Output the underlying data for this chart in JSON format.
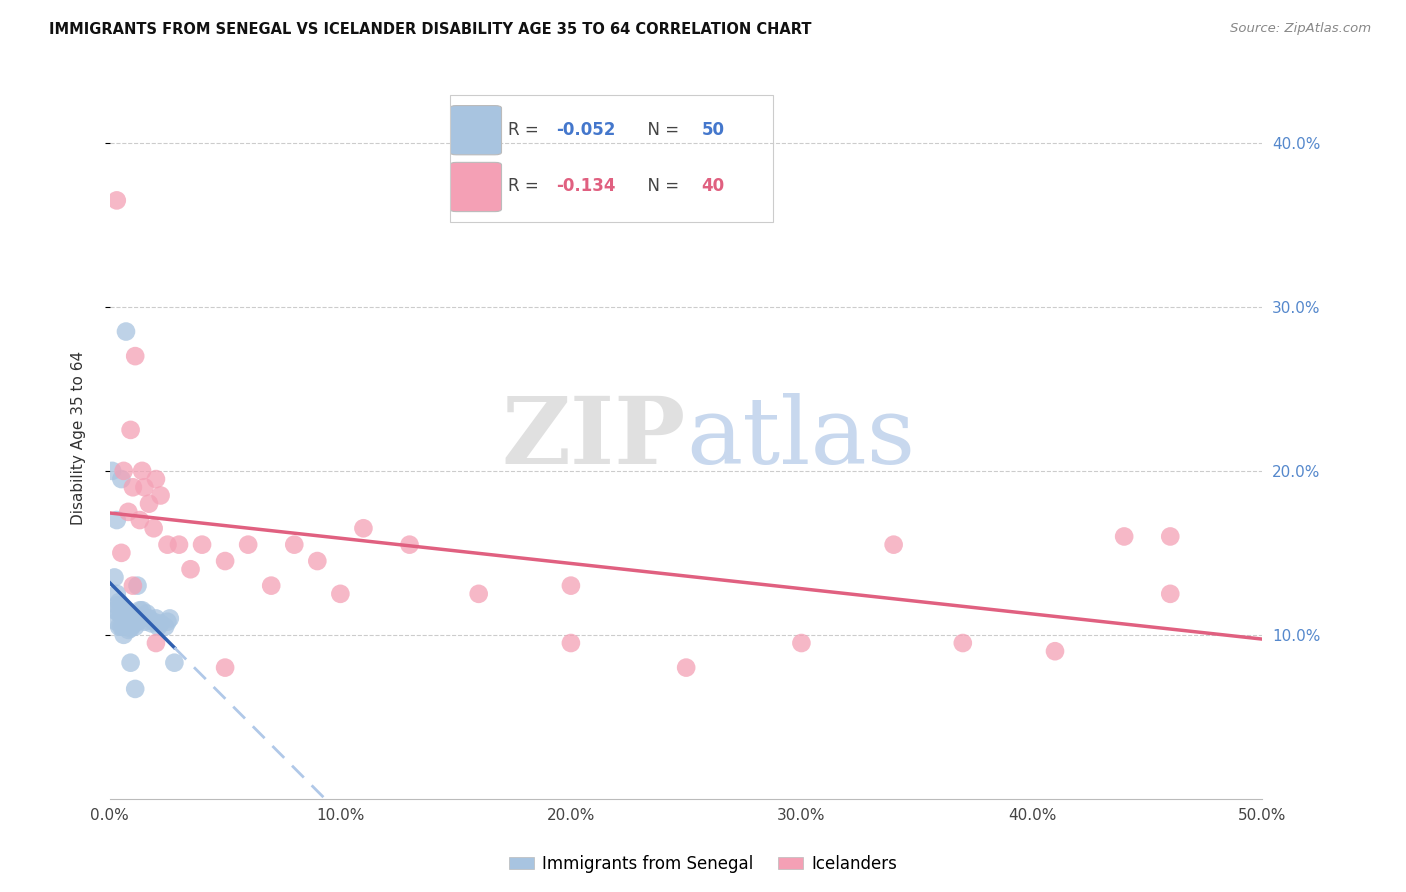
{
  "title": "IMMIGRANTS FROM SENEGAL VS ICELANDER DISABILITY AGE 35 TO 64 CORRELATION CHART",
  "source": "Source: ZipAtlas.com",
  "ylabel": "Disability Age 35 to 64",
  "xlim": [
    0.0,
    0.5
  ],
  "ylim": [
    0.0,
    0.44
  ],
  "xticks": [
    0.0,
    0.1,
    0.2,
    0.3,
    0.4,
    0.5
  ],
  "yticks": [
    0.1,
    0.2,
    0.3,
    0.4
  ],
  "ytick_labels_right": [
    "10.0%",
    "20.0%",
    "30.0%",
    "40.0%"
  ],
  "xtick_labels": [
    "0.0%",
    "10.0%",
    "20.0%",
    "30.0%",
    "40.0%",
    "50.0%"
  ],
  "legend_r_blue": "-0.052",
  "legend_n_blue": "50",
  "legend_r_pink": "-0.134",
  "legend_n_pink": "40",
  "blue_color": "#a8c4e0",
  "pink_color": "#f4a0b5",
  "line_blue_solid": "#3060b0",
  "line_pink_solid": "#e06080",
  "line_blue_dashed": "#b0c8e8",
  "blue_x": [
    0.001,
    0.002,
    0.002,
    0.003,
    0.003,
    0.003,
    0.004,
    0.004,
    0.004,
    0.005,
    0.005,
    0.005,
    0.006,
    0.006,
    0.006,
    0.006,
    0.007,
    0.007,
    0.007,
    0.008,
    0.008,
    0.008,
    0.009,
    0.009,
    0.009,
    0.01,
    0.01,
    0.011,
    0.011,
    0.012,
    0.012,
    0.013,
    0.014,
    0.015,
    0.016,
    0.017,
    0.018,
    0.019,
    0.02,
    0.021,
    0.022,
    0.024,
    0.025,
    0.026,
    0.028,
    0.003,
    0.005,
    0.007,
    0.009,
    0.011
  ],
  "blue_y": [
    0.2,
    0.135,
    0.115,
    0.125,
    0.118,
    0.108,
    0.12,
    0.113,
    0.105,
    0.118,
    0.112,
    0.105,
    0.115,
    0.11,
    0.105,
    0.1,
    0.114,
    0.11,
    0.107,
    0.113,
    0.108,
    0.103,
    0.112,
    0.108,
    0.104,
    0.111,
    0.106,
    0.11,
    0.105,
    0.13,
    0.108,
    0.115,
    0.115,
    0.108,
    0.113,
    0.11,
    0.107,
    0.108,
    0.11,
    0.105,
    0.107,
    0.105,
    0.108,
    0.11,
    0.083,
    0.17,
    0.195,
    0.285,
    0.083,
    0.067
  ],
  "pink_x": [
    0.003,
    0.005,
    0.006,
    0.008,
    0.009,
    0.01,
    0.011,
    0.013,
    0.014,
    0.015,
    0.017,
    0.019,
    0.02,
    0.022,
    0.025,
    0.03,
    0.035,
    0.04,
    0.05,
    0.06,
    0.07,
    0.08,
    0.09,
    0.1,
    0.11,
    0.13,
    0.16,
    0.2,
    0.25,
    0.3,
    0.34,
    0.37,
    0.41,
    0.44,
    0.46,
    0.46,
    0.01,
    0.02,
    0.05,
    0.2
  ],
  "pink_y": [
    0.365,
    0.15,
    0.2,
    0.175,
    0.225,
    0.19,
    0.27,
    0.17,
    0.2,
    0.19,
    0.18,
    0.165,
    0.195,
    0.185,
    0.155,
    0.155,
    0.14,
    0.155,
    0.145,
    0.155,
    0.13,
    0.155,
    0.145,
    0.125,
    0.165,
    0.155,
    0.125,
    0.13,
    0.08,
    0.095,
    0.155,
    0.095,
    0.09,
    0.16,
    0.16,
    0.125,
    0.13,
    0.095,
    0.08,
    0.095
  ]
}
